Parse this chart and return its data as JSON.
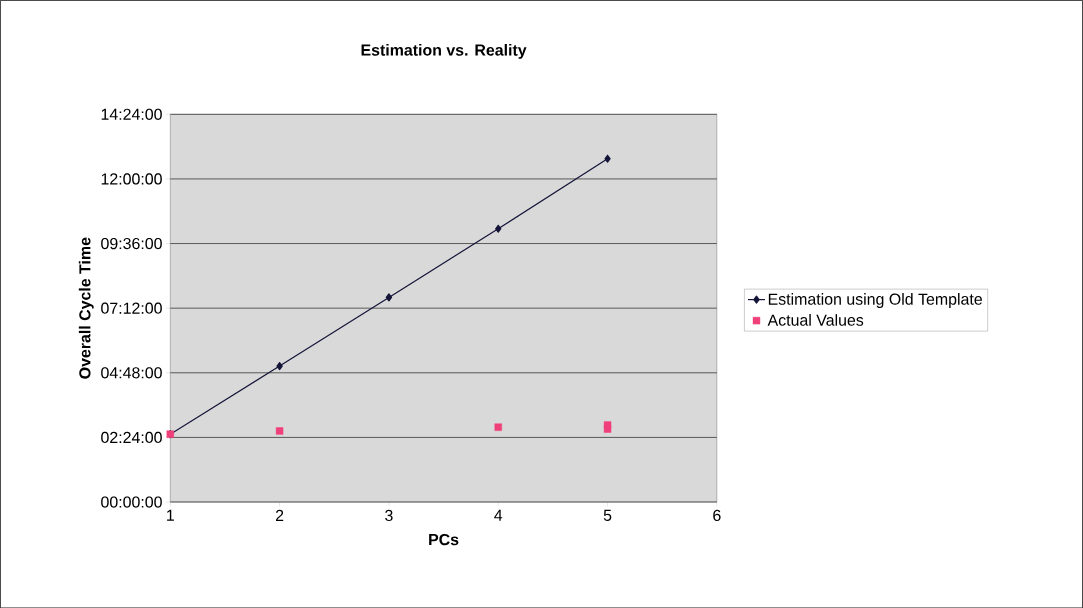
{
  "chart_data": {
    "type": "line",
    "title": "Estimation vs. Reality",
    "xlabel": "PCs",
    "ylabel": "Overall Cycle Time",
    "series": [
      {
        "name": "Estimation using Old Template",
        "marker": "diamond",
        "color": "#141438",
        "x": [
          1,
          2,
          3,
          4,
          5
        ],
        "values": [
          2.52,
          5.05,
          7.6,
          10.15,
          12.75
        ]
      },
      {
        "name": "Actual Values",
        "type": "scatter",
        "marker": "square",
        "color": "#f0407a",
        "x": [
          1,
          2,
          4,
          5,
          5
        ],
        "values": [
          2.52,
          2.64,
          2.78,
          2.86,
          2.71
        ]
      }
    ],
    "xlim": [
      1,
      6
    ],
    "xticks": [
      1,
      2,
      3,
      4,
      5,
      6
    ],
    "ylim": [
      0,
      14.4
    ],
    "yticks": [
      {
        "value": 0,
        "label": "00:00:00"
      },
      {
        "value": 2.4,
        "label": "02:24:00"
      },
      {
        "value": 4.8,
        "label": "04:48:00"
      },
      {
        "value": 7.2,
        "label": "07:12:00"
      },
      {
        "value": 9.6,
        "label": "09:36:00"
      },
      {
        "value": 12,
        "label": "12:00:00"
      },
      {
        "value": 14.4,
        "label": "14:24:00"
      }
    ],
    "grid": "y",
    "legend": "right"
  }
}
